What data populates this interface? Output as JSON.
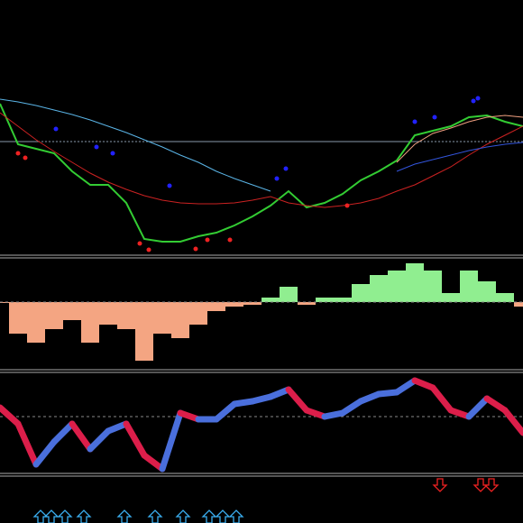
{
  "chart_data": [
    {
      "type": "line",
      "ylim": [
        17,
        300
      ],
      "series": [
        {
          "color": "#33cc33",
          "values": [
            185,
            140,
            135,
            130,
            110,
            95,
            95,
            75,
            35,
            32,
            32,
            38,
            42,
            50,
            60,
            72,
            88,
            70,
            75,
            85,
            100,
            110,
            122,
            150,
            155,
            160,
            170,
            172,
            165,
            160
          ]
        },
        {
          "color": "#cc2222",
          "values": [
            175,
            160,
            145,
            132,
            120,
            108,
            98,
            90,
            83,
            78,
            75,
            74,
            74,
            75,
            78,
            82,
            75,
            72,
            70,
            72,
            75,
            80,
            88,
            95,
            105,
            115,
            128,
            140,
            150,
            160
          ]
        },
        {
          "color": "#5ab4e6",
          "values": [
            190,
            187,
            183,
            178,
            173,
            167,
            160,
            153,
            145,
            137,
            128,
            120,
            110,
            102,
            95,
            88,
            null,
            null,
            null,
            null,
            null,
            null,
            null,
            null,
            null,
            null,
            null,
            null,
            null,
            null
          ]
        },
        {
          "color": "#3355dd",
          "values": [
            null,
            null,
            null,
            null,
            null,
            null,
            null,
            null,
            null,
            null,
            null,
            null,
            null,
            null,
            null,
            null,
            null,
            null,
            null,
            null,
            null,
            null,
            110,
            118,
            123,
            128,
            133,
            137,
            140,
            142
          ]
        },
        {
          "color": "#f0a080",
          "values": [
            null,
            null,
            null,
            null,
            null,
            null,
            null,
            null,
            null,
            null,
            null,
            null,
            null,
            null,
            null,
            null,
            null,
            null,
            null,
            null,
            null,
            null,
            120,
            140,
            152,
            158,
            165,
            170,
            172,
            170
          ]
        }
      ],
      "bands": [
        {
          "upper": 2,
          "lower": 1,
          "color": "#5ab4e6"
        },
        {
          "upper": 4,
          "lower": 3,
          "color": "#f0a080"
        }
      ]
    },
    {
      "type": "bar",
      "ylim": [
        -75,
        48
      ],
      "positive_color": "#90ee90",
      "negative_color": "#f4a582",
      "values": [
        -1,
        -35,
        -45,
        -30,
        -20,
        -45,
        -25,
        -30,
        -65,
        -35,
        -40,
        -25,
        -10,
        -5,
        -3,
        5,
        17,
        -3,
        5,
        5,
        20,
        30,
        35,
        43,
        35,
        10,
        35,
        23,
        10,
        -5
      ]
    },
    {
      "type": "line",
      "ylim": [
        5,
        116
      ],
      "up_color": "#4a6fdc",
      "down_color": "#dc1e4a",
      "levels": [
        68
      ],
      "values": [
        78,
        60,
        15,
        40,
        60,
        32,
        52,
        60,
        25,
        10,
        72,
        65,
        65,
        82,
        85,
        90,
        98,
        75,
        68,
        72,
        85,
        93,
        95,
        108,
        100,
        75,
        68,
        88,
        75,
        50
      ]
    }
  ]
}
